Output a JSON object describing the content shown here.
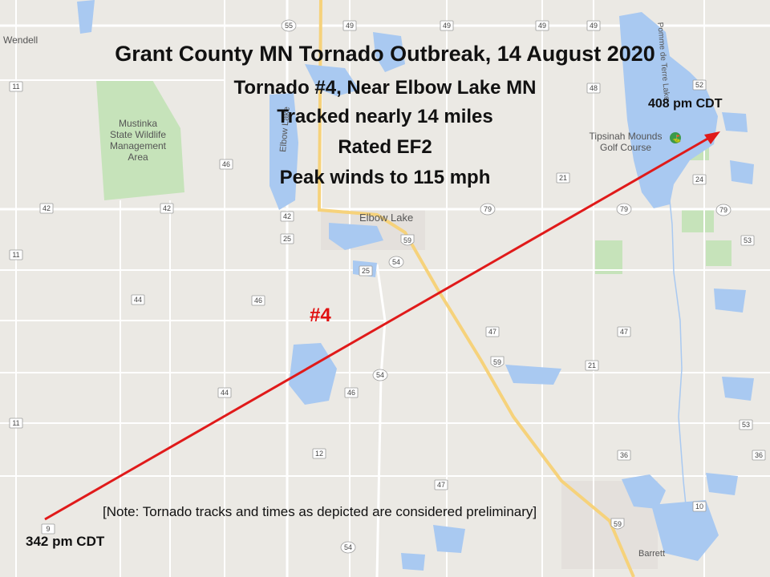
{
  "title": "Grant County MN Tornado Outbreak, 14 August 2020",
  "subtitle_lines": [
    "Tornado #4, Near Elbow Lake MN",
    "Tracked nearly 14 miles",
    "Rated EF2",
    "Peak winds to 115 mph"
  ],
  "tornado_label": "#4",
  "track": {
    "start_time": "342 pm CDT",
    "end_time": "408 pm CDT"
  },
  "note": "[Note: Tornado tracks and times as depicted are considered preliminary]",
  "places": {
    "wendell": "Wendell",
    "elbow_lake_town": "Elbow Lake",
    "elbow_lake_water": "Elbow Lake",
    "barrett": "Barrett",
    "mustinka": [
      "Mustinka",
      "State Wildlife",
      "Management",
      "Area"
    ],
    "tipsinah": [
      "Tipsinah Mounds",
      "Golf Course"
    ],
    "pomme_de_terre": "Pomme de Terre Lake"
  },
  "highway_shields": {
    "us_59": "59",
    "mn_55": "55",
    "mn_79": "79",
    "county": [
      "49",
      "48",
      "52",
      "24",
      "53",
      "11",
      "42",
      "46",
      "25",
      "54",
      "44",
      "47",
      "21",
      "12",
      "9",
      "36",
      "10"
    ]
  },
  "colors": {
    "map_background": "#ebe9e4",
    "water": "#a9c9f1",
    "park": "#c6e3ba",
    "road": "#ffffff",
    "highway": "#f6d27b",
    "track": "#e01a1a"
  },
  "icons": {
    "golf": "golf-flag-icon"
  }
}
